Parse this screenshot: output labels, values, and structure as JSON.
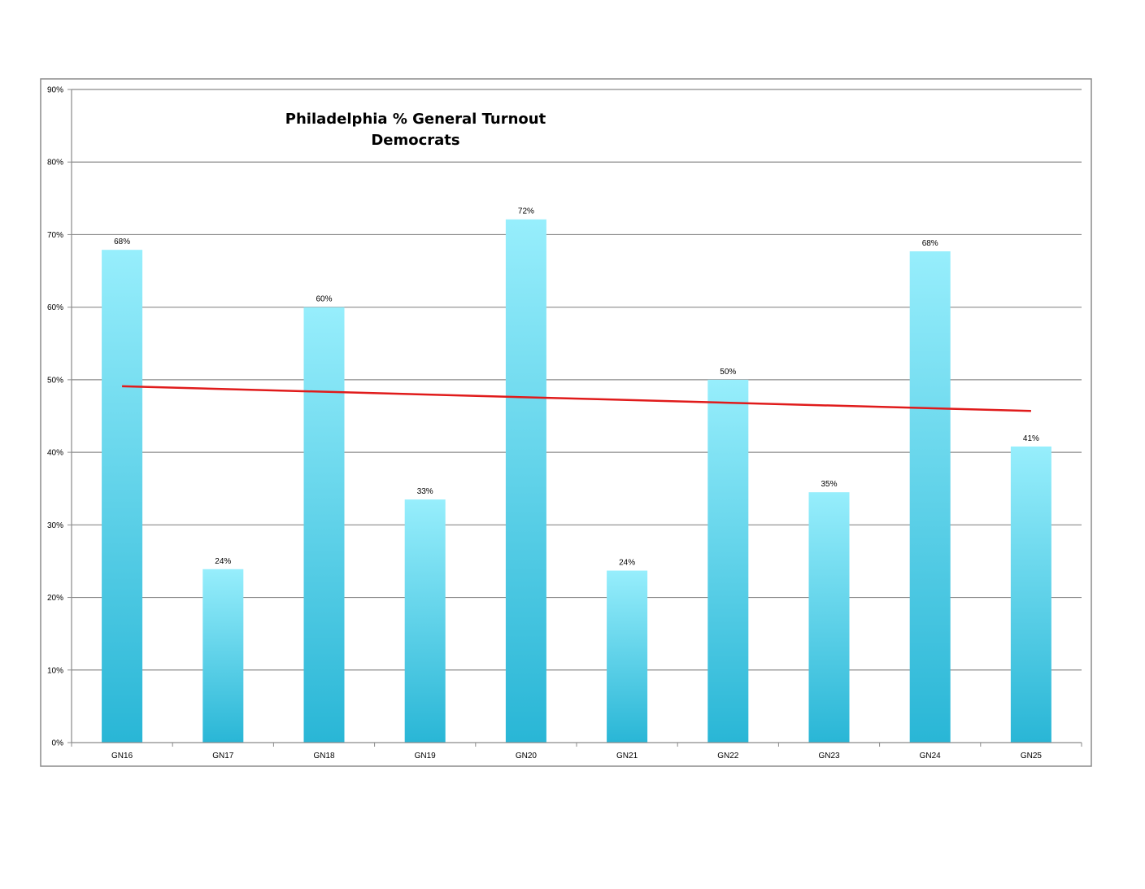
{
  "chart_data": {
    "type": "bar",
    "title_line1": "Philadelphia % General Turnout",
    "title_line2": "Democrats",
    "xlabel": "",
    "ylabel": "",
    "categories": [
      "GN16",
      "GN17",
      "GN18",
      "GN19",
      "GN20",
      "GN21",
      "GN22",
      "GN23",
      "GN24",
      "GN25"
    ],
    "values": [
      68,
      24,
      60,
      33,
      72,
      24,
      50,
      35,
      68,
      41
    ],
    "plot_values": [
      67.9,
      23.9,
      60.0,
      33.5,
      72.1,
      23.7,
      50.0,
      34.5,
      67.7,
      40.8
    ],
    "data_labels": [
      "68%",
      "24%",
      "60%",
      "33%",
      "72%",
      "24%",
      "50%",
      "35%",
      "68%",
      "41%"
    ],
    "ylim": [
      0,
      90
    ],
    "yticks": [
      0,
      10,
      20,
      30,
      40,
      50,
      60,
      70,
      80,
      90
    ],
    "ytick_labels": [
      "0%",
      "10%",
      "20%",
      "30%",
      "40%",
      "50%",
      "60%",
      "70%",
      "80%",
      "90%"
    ],
    "grid": true,
    "legend": "none",
    "trendline": {
      "type": "linear",
      "start_value": 49.1,
      "end_value": 45.7,
      "color": "#e01b1b"
    },
    "bar_color_top": "#97eefc",
    "bar_color_bottom": "#29b6d6"
  }
}
